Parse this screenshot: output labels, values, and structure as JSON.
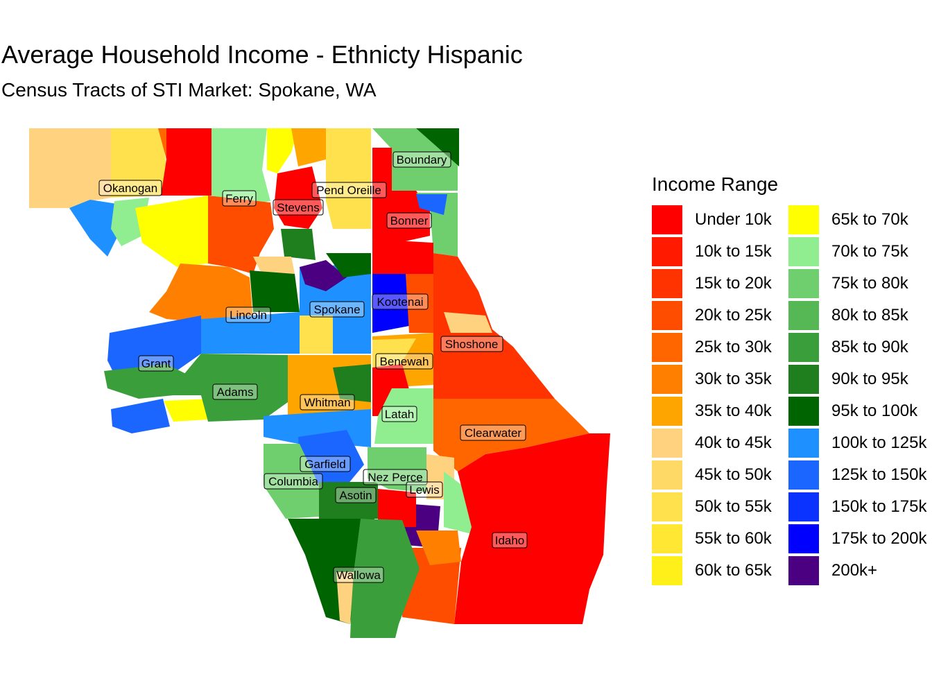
{
  "title": "Average Household Income - Ethnicty Hispanic",
  "subtitle": "Census Tracts of STI Market: Spokane, WA",
  "legend": {
    "title": "Income Range",
    "items": [
      {
        "label": "Under 10k",
        "color": "#ff0000"
      },
      {
        "label": "10k to 15k",
        "color": "#ff1a00"
      },
      {
        "label": "15k to 20k",
        "color": "#ff3300"
      },
      {
        "label": "20k to 25k",
        "color": "#ff4d00"
      },
      {
        "label": "25k to 30k",
        "color": "#ff6600"
      },
      {
        "label": "30k to 35k",
        "color": "#ff8000"
      },
      {
        "label": "35k to 40k",
        "color": "#ffa500"
      },
      {
        "label": "40k to 45k",
        "color": "#ffd27f"
      },
      {
        "label": "45k to 50k",
        "color": "#ffd966"
      },
      {
        "label": "50k to 55k",
        "color": "#ffe14d"
      },
      {
        "label": "55k to 60k",
        "color": "#ffe733"
      },
      {
        "label": "60k to 65k",
        "color": "#fff01a"
      },
      {
        "label": "65k to 70k",
        "color": "#ffff00"
      },
      {
        "label": "70k to 75k",
        "color": "#90ee90"
      },
      {
        "label": "75k to 80k",
        "color": "#6fcf6f"
      },
      {
        "label": "80k to 85k",
        "color": "#55b855"
      },
      {
        "label": "85k to 90k",
        "color": "#3a9e3a"
      },
      {
        "label": "90k to 95k",
        "color": "#1f7f1f"
      },
      {
        "label": "95k to 100k",
        "color": "#006400"
      },
      {
        "label": "100k to 125k",
        "color": "#1e90ff"
      },
      {
        "label": "125k to 150k",
        "color": "#1a66ff"
      },
      {
        "label": "150k to 175k",
        "color": "#0a33ff"
      },
      {
        "label": "175k to 200k",
        "color": "#0000ff"
      },
      {
        "label": "200k+",
        "color": "#4b0082"
      }
    ]
  },
  "counties": [
    "Okanogan",
    "Ferry",
    "Stevens",
    "Pend Oreille",
    "Boundary",
    "Bonner",
    "Spokane",
    "Kootenai",
    "Lincoln",
    "Shoshone",
    "Grant",
    "Benewah",
    "Adams",
    "Whitman",
    "Latah",
    "Clearwater",
    "Garfield",
    "Columbia",
    "Nez Perce",
    "Lewis",
    "Asotin",
    "Idaho",
    "Wallowa"
  ]
}
